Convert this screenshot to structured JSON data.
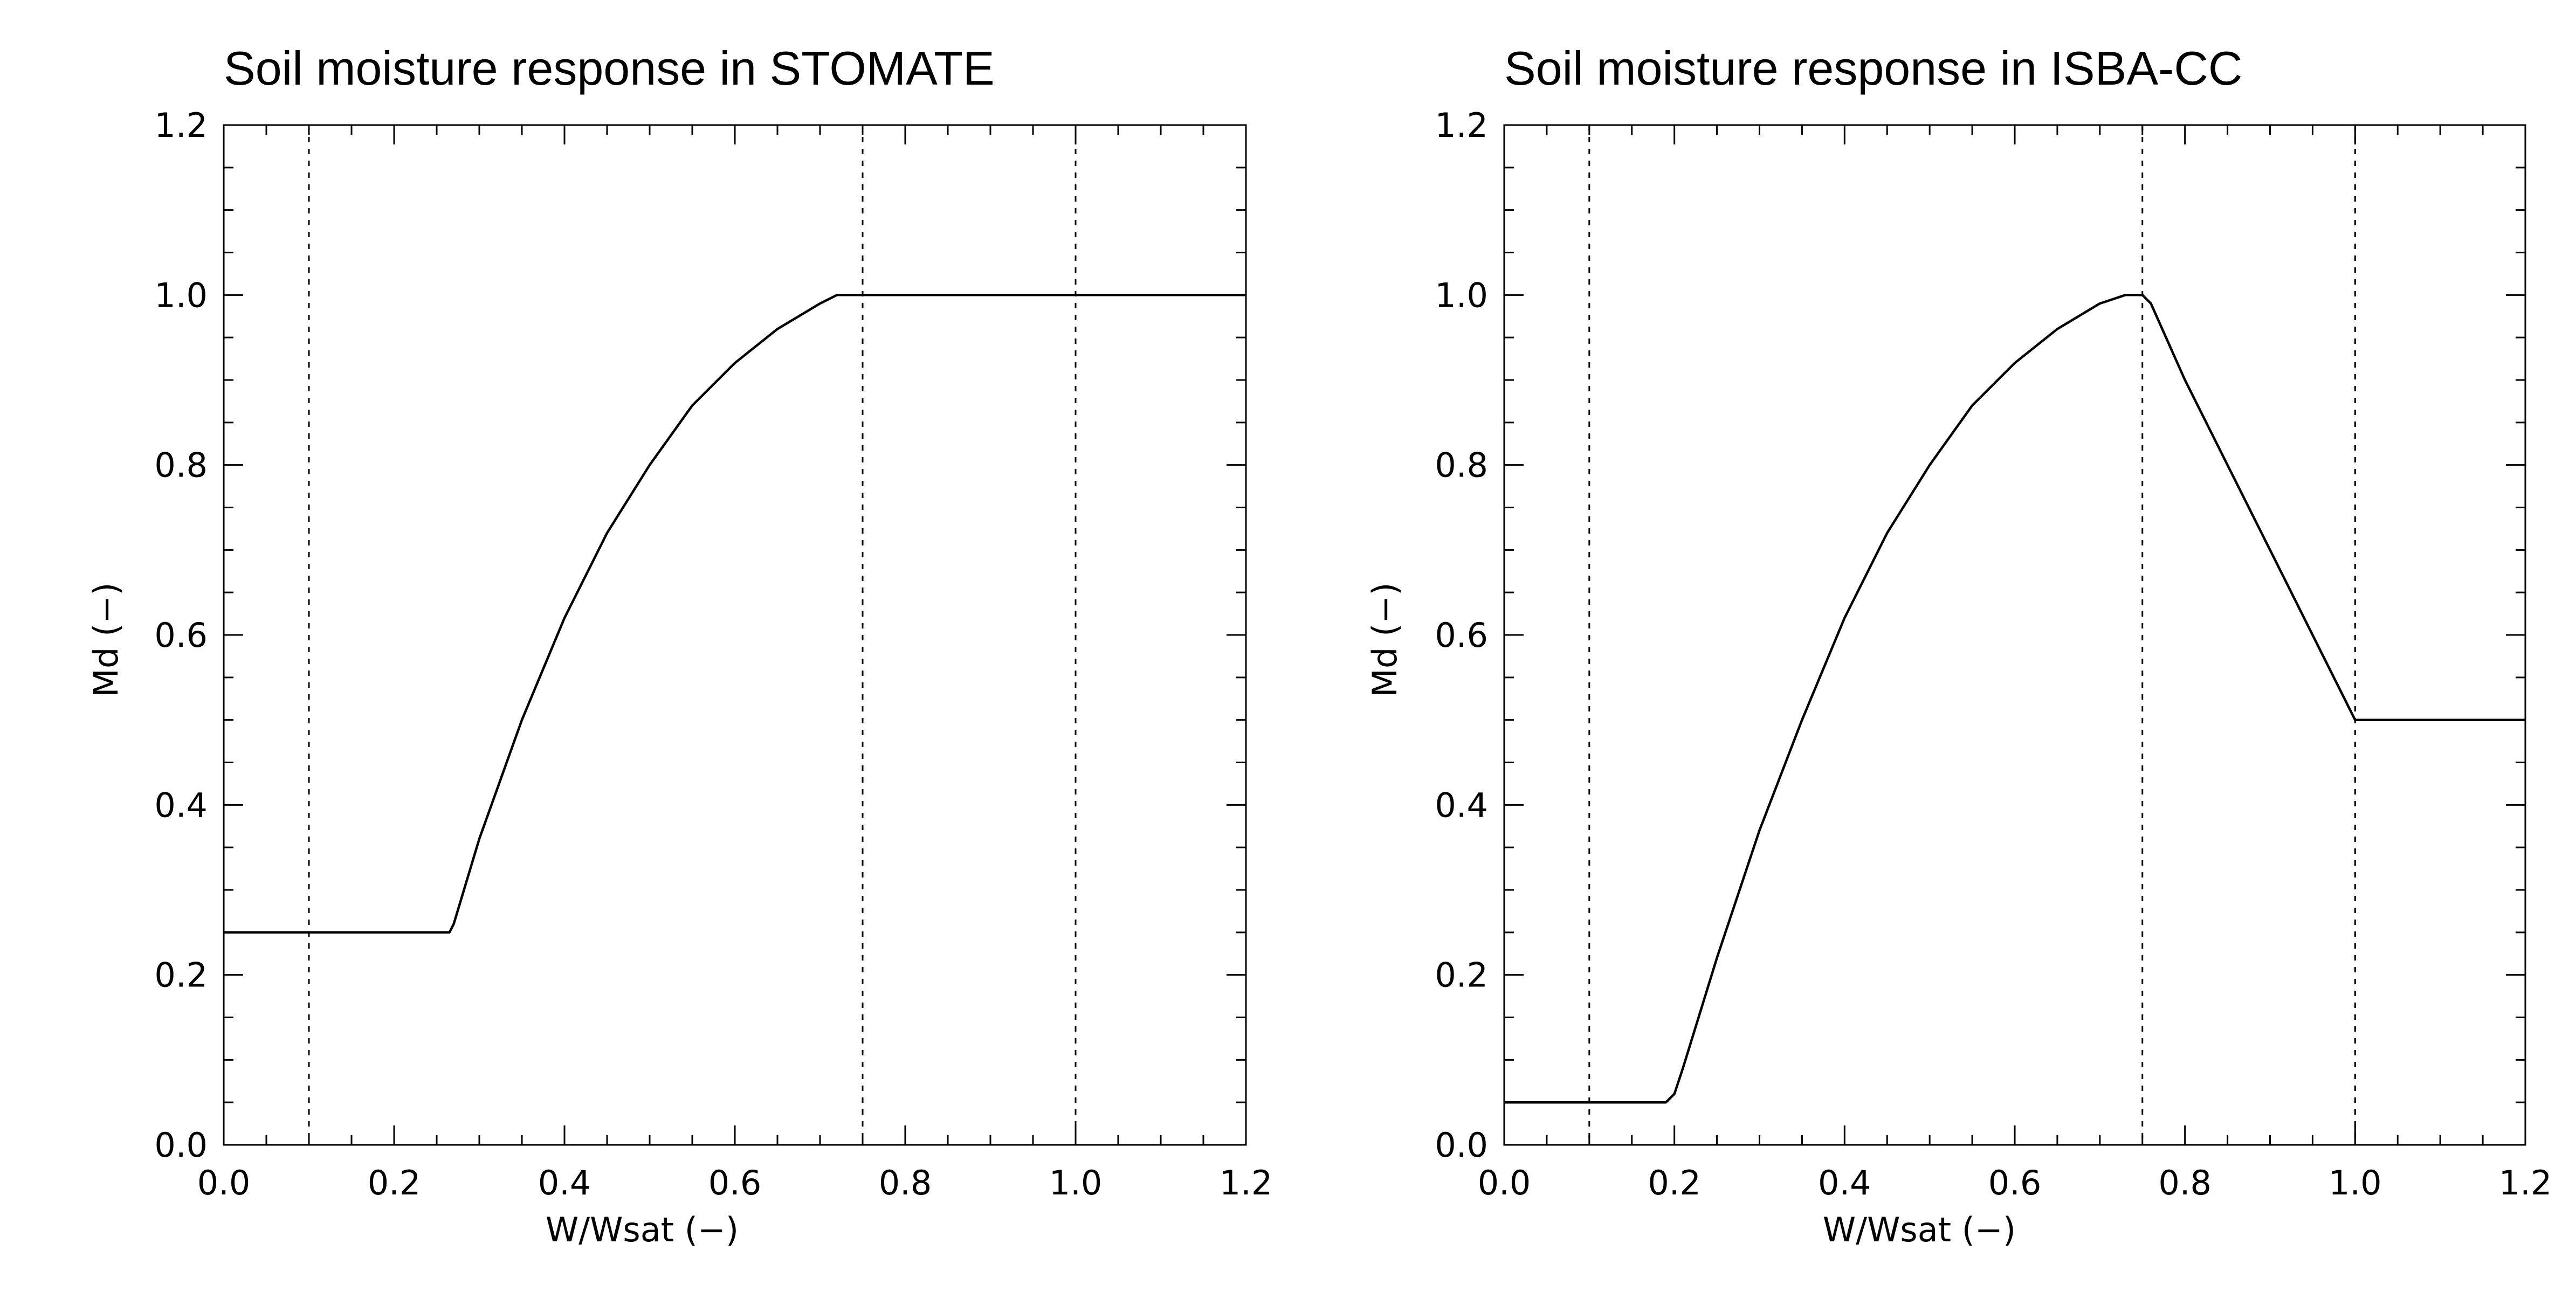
{
  "chart_data": [
    {
      "type": "line",
      "title": "Soil moisture response in STOMATE",
      "xlabel": "W/Wsat (−)",
      "ylabel": "Md (−)",
      "xlim": [
        0.0,
        1.2
      ],
      "ylim": [
        0.0,
        1.2
      ],
      "xticks": [
        "0.0",
        "0.2",
        "0.4",
        "0.6",
        "0.8",
        "1.0",
        "1.2"
      ],
      "yticks": [
        "0.0",
        "0.2",
        "0.4",
        "0.6",
        "0.8",
        "1.0",
        "1.2"
      ],
      "grid": false,
      "legend": "none",
      "vlines": [
        0.1,
        0.75,
        1.0
      ],
      "series": [
        {
          "x": [
            0.0,
            0.1,
            0.2,
            0.265,
            0.27,
            0.3,
            0.35,
            0.4,
            0.45,
            0.5,
            0.55,
            0.6,
            0.65,
            0.7,
            0.72,
            0.75,
            0.8,
            0.9,
            1.0,
            1.1,
            1.2
          ],
          "y": [
            0.25,
            0.25,
            0.25,
            0.25,
            0.26,
            0.36,
            0.5,
            0.62,
            0.72,
            0.8,
            0.87,
            0.92,
            0.96,
            0.99,
            1.0,
            1.0,
            1.0,
            1.0,
            1.0,
            1.0,
            1.0
          ]
        }
      ]
    },
    {
      "type": "line",
      "title": "Soil moisture response in ISBA-CC",
      "xlabel": "W/Wsat (−)",
      "ylabel": "Md (−)",
      "xlim": [
        0.0,
        1.2
      ],
      "ylim": [
        0.0,
        1.2
      ],
      "xticks": [
        "0.0",
        "0.2",
        "0.4",
        "0.6",
        "0.8",
        "1.0",
        "1.2"
      ],
      "yticks": [
        "0.0",
        "0.2",
        "0.4",
        "0.6",
        "0.8",
        "1.0",
        "1.2"
      ],
      "grid": false,
      "legend": "none",
      "vlines": [
        0.1,
        0.75,
        1.0
      ],
      "series": [
        {
          "x": [
            0.0,
            0.1,
            0.19,
            0.2,
            0.21,
            0.25,
            0.3,
            0.35,
            0.4,
            0.45,
            0.5,
            0.55,
            0.6,
            0.65,
            0.7,
            0.73,
            0.75,
            0.76,
            0.8,
            0.85,
            0.9,
            0.95,
            1.0,
            1.1,
            1.2
          ],
          "y": [
            0.05,
            0.05,
            0.05,
            0.06,
            0.09,
            0.22,
            0.37,
            0.5,
            0.62,
            0.72,
            0.8,
            0.87,
            0.92,
            0.96,
            0.99,
            1.0,
            1.0,
            0.99,
            0.9,
            0.8,
            0.7,
            0.6,
            0.5,
            0.5,
            0.5
          ]
        }
      ]
    }
  ]
}
